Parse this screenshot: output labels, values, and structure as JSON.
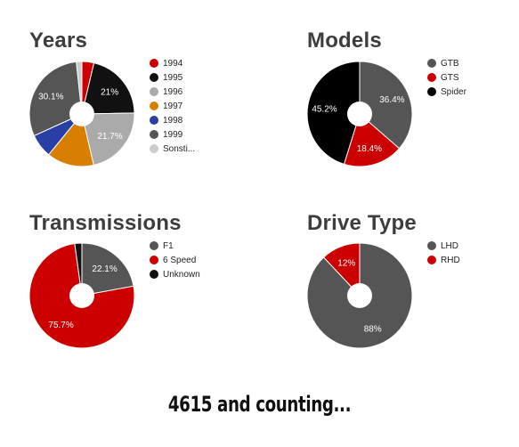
{
  "chart_data": [
    {
      "type": "pie",
      "title": "Years",
      "categories": [
        "1994",
        "1995",
        "1996",
        "1997",
        "1998",
        "1999",
        "Sonsti..."
      ],
      "values": [
        3.7,
        21,
        21.7,
        14.5,
        7.3,
        30.1,
        1.7
      ],
      "data_labels": [
        "",
        "21%",
        "21.7%",
        "",
        "",
        "30.1%",
        ""
      ],
      "colors": [
        "#cc0000",
        "#111111",
        "#aaaaaa",
        "#d97f00",
        "#2a3fa6",
        "#555555",
        "#cccccc"
      ],
      "legend": "right"
    },
    {
      "type": "pie",
      "title": "Models",
      "categories": [
        "GTB",
        "GTS",
        "Spider"
      ],
      "values": [
        36.4,
        18.4,
        45.2
      ],
      "data_labels": [
        "36.4%",
        "18.4%",
        "45.2%"
      ],
      "colors": [
        "#555555",
        "#cc0000",
        "#000000"
      ],
      "legend": "right"
    },
    {
      "type": "pie",
      "title": "Transmissions",
      "categories": [
        "F1",
        "6 Speed",
        "Unknown"
      ],
      "values": [
        22.1,
        75.7,
        2.2
      ],
      "data_labels": [
        "22.1%",
        "75.7%",
        ""
      ],
      "colors": [
        "#555555",
        "#cc0000",
        "#111111"
      ],
      "legend": "right"
    },
    {
      "type": "pie",
      "title": "Drive Type",
      "categories": [
        "LHD",
        "RHD"
      ],
      "values": [
        88,
        12
      ],
      "data_labels": [
        "88%",
        "12%"
      ],
      "colors": [
        "#555555",
        "#cc0000"
      ],
      "legend": "right"
    }
  ],
  "footer": {
    "tagline": "4615 and counting..."
  }
}
